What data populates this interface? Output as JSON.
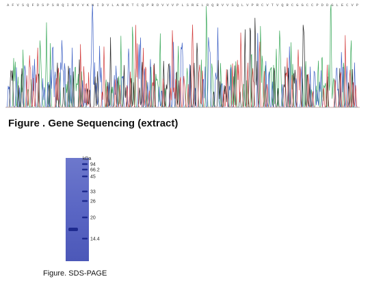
{
  "figure1": {
    "caption": "Figure . Gene Sequencing (extract)",
    "sequence": "AFVSQFDSPSRQIRVVKNIDVLARKTCQPRDVVVPLSRELRQRVVSQLVPRCVTVQRCGGCCPDDGLECVP",
    "trace_colors": {
      "A": "#3aa95a",
      "C": "#3b5fc4",
      "G": "#222222",
      "T": "#d23a3a"
    }
  },
  "figure2": {
    "caption": "Figure. SDS-PAGE",
    "unit_label": "kDa",
    "markers": [
      "94",
      "66.2",
      "45",
      "33",
      "26",
      "20",
      "14.4"
    ],
    "gel_color": "#5a66c4",
    "band_color": "#1e2a8f"
  }
}
